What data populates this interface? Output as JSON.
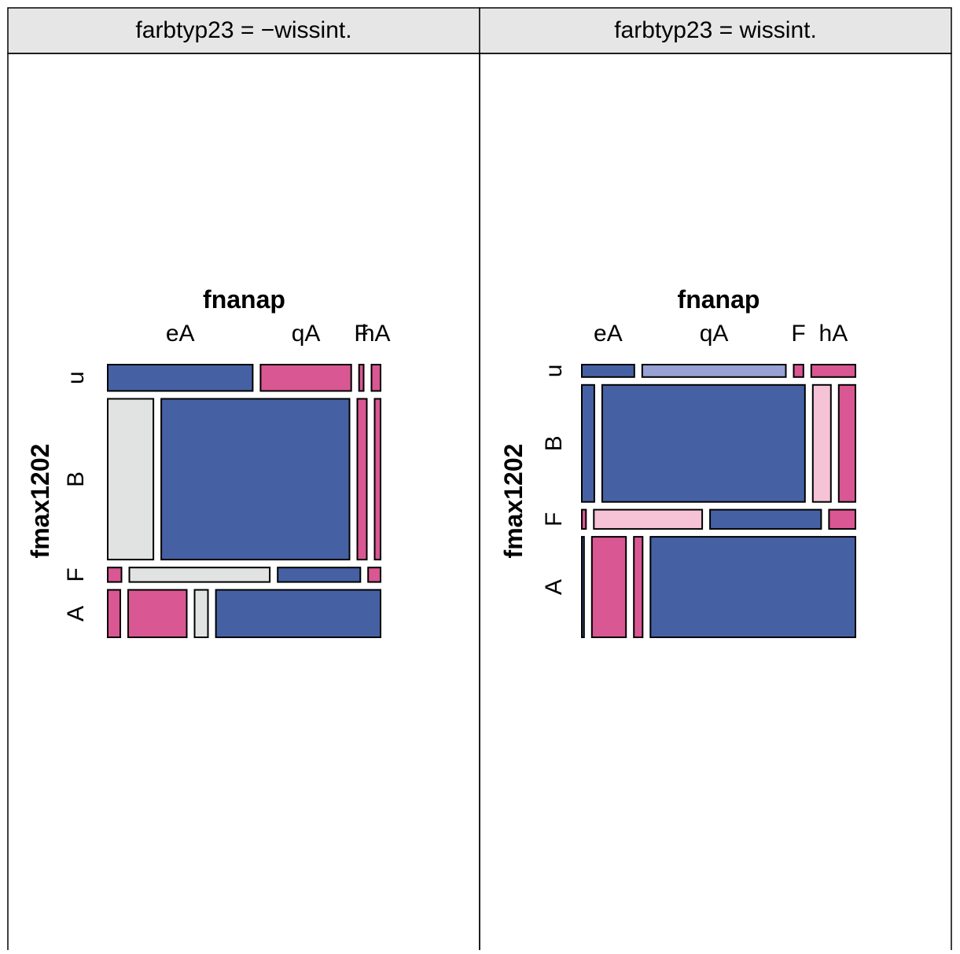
{
  "chart_data": {
    "type": "mosaic",
    "panels": [
      {
        "strip_label": "farbtyp23 = −wissint.",
        "column_variable": "fnanap",
        "row_variable": "fmax1202",
        "column_labels": [
          "eA",
          "qA",
          "F",
          "hA"
        ],
        "row_labels": [
          "u",
          "B",
          "F",
          "A"
        ],
        "row_groups": [
          {
            "label": "u",
            "share": 0.1,
            "cells": [
              {
                "share": 0.48,
                "fill": "dark_blue"
              },
              {
                "share": 0.3,
                "fill": "pink"
              },
              {
                "share": 0.015,
                "fill": "pink"
              },
              {
                "share": 0.03,
                "fill": "pink"
              }
            ]
          },
          {
            "label": "B",
            "share": 0.61,
            "cells": [
              {
                "share": 0.17,
                "fill": "grey"
              },
              {
                "share": 0.7,
                "fill": "dark_blue"
              },
              {
                "share": 0.035,
                "fill": "pink"
              },
              {
                "share": 0.022,
                "fill": "pink"
              }
            ]
          },
          {
            "label": "F",
            "share": 0.055,
            "cells": [
              {
                "share": 0.05,
                "fill": "pink"
              },
              {
                "share": 0.51,
                "fill": "grey"
              },
              {
                "share": 0.3,
                "fill": "dark_blue"
              },
              {
                "share": 0.045,
                "fill": "pink"
              }
            ]
          },
          {
            "label": "A",
            "share": 0.18,
            "cells": [
              {
                "share": 0.045,
                "fill": "pink"
              },
              {
                "share": 0.21,
                "fill": "pink"
              },
              {
                "share": 0.048,
                "fill": "grey"
              },
              {
                "share": 0.59,
                "fill": "dark_blue"
              }
            ]
          }
        ]
      },
      {
        "strip_label": "farbtyp23 = wissint.",
        "column_variable": "fnanap",
        "row_variable": "fmax1202",
        "column_labels": [
          "eA",
          "qA",
          "F",
          "hA"
        ],
        "row_labels": [
          "u",
          "B",
          "F",
          "A"
        ],
        "row_groups": [
          {
            "label": "u",
            "share": 0.045,
            "cells": [
              {
                "share": 0.19,
                "fill": "dark_blue"
              },
              {
                "share": 0.52,
                "fill": "light_blue"
              },
              {
                "share": 0.035,
                "fill": "pink"
              },
              {
                "share": 0.16,
                "fill": "pink"
              }
            ]
          },
          {
            "label": "B",
            "share": 0.425,
            "cells": [
              {
                "share": 0.045,
                "fill": "dark_blue"
              },
              {
                "share": 0.73,
                "fill": "dark_blue"
              },
              {
                "share": 0.065,
                "fill": "light_pink"
              },
              {
                "share": 0.06,
                "fill": "pink"
              }
            ]
          },
          {
            "label": "F",
            "share": 0.07,
            "cells": [
              {
                "share": 0.015,
                "fill": "pink"
              },
              {
                "share": 0.39,
                "fill": "light_pink"
              },
              {
                "share": 0.4,
                "fill": "dark_blue"
              },
              {
                "share": 0.095,
                "fill": "pink"
              }
            ]
          },
          {
            "label": "A",
            "share": 0.365,
            "cells": [
              {
                "share": 0.008,
                "fill": "dark_blue"
              },
              {
                "share": 0.125,
                "fill": "pink"
              },
              {
                "share": 0.032,
                "fill": "pink"
              },
              {
                "share": 0.75,
                "fill": "dark_blue"
              }
            ]
          }
        ]
      }
    ],
    "colors": {
      "dark_blue": "#4661a3",
      "light_blue": "#98a1d3",
      "grey": "#e1e2e2",
      "light_pink": "#f5c2d6",
      "pink": "#d95792",
      "strip_bg": "#e6e6e6",
      "border": "#000000"
    }
  }
}
